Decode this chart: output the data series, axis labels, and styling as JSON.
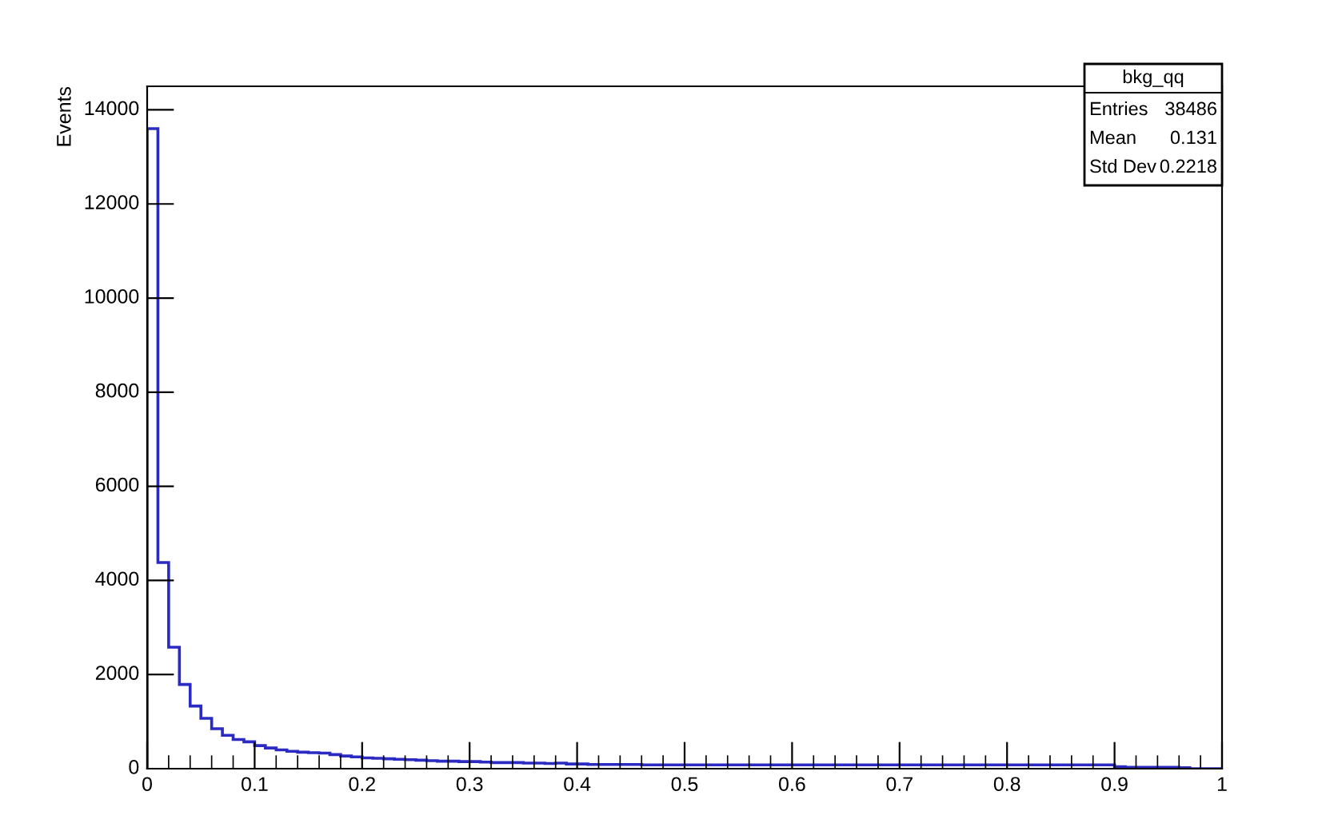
{
  "chart_data": {
    "type": "histogram",
    "ylabel": "Events",
    "color": "#2b2bc4",
    "annotations": [
      "bkg_qq",
      "Entries",
      "38486",
      "Mean",
      "0.131",
      "Std Dev",
      "0.2218"
    ],
    "bins": [
      0,
      0.01,
      0.02,
      0.03,
      0.04,
      0.05,
      0.06,
      0.07,
      0.08,
      0.09,
      0.1,
      0.11,
      0.12,
      0.13,
      0.14,
      0.15,
      0.16,
      0.17,
      0.18,
      0.19,
      0.2,
      0.21,
      0.22,
      0.23,
      0.24,
      0.25,
      0.26,
      0.27,
      0.28,
      0.29,
      0.3,
      0.31,
      0.32,
      0.33,
      0.34,
      0.35,
      0.36,
      0.37,
      0.38,
      0.39,
      0.4,
      0.41,
      0.42,
      0.43,
      0.44,
      0.45,
      0.46,
      0.47,
      0.48,
      0.49,
      0.5,
      0.51,
      0.52,
      0.53,
      0.54,
      0.55,
      0.56,
      0.57,
      0.58,
      0.59,
      0.6,
      0.61,
      0.62,
      0.63,
      0.64,
      0.65,
      0.66,
      0.67,
      0.68,
      0.69,
      0.7,
      0.71,
      0.72,
      0.73,
      0.74,
      0.75,
      0.76,
      0.77,
      0.78,
      0.79,
      0.8,
      0.81,
      0.82,
      0.83,
      0.84,
      0.85,
      0.86,
      0.87,
      0.88,
      0.89,
      0.9,
      0.91,
      0.92,
      0.93,
      0.94,
      0.95,
      0.96,
      0.97,
      0.98,
      0.99,
      1
    ],
    "values": [
      13600,
      4380,
      2580,
      1790,
      1330,
      1070,
      850,
      710,
      620,
      570,
      490,
      440,
      400,
      370,
      350,
      340,
      330,
      300,
      270,
      250,
      230,
      220,
      210,
      200,
      190,
      180,
      170,
      160,
      160,
      150,
      150,
      140,
      130,
      130,
      130,
      120,
      120,
      110,
      120,
      100,
      100,
      90,
      90,
      90,
      90,
      90,
      80,
      80,
      80,
      80,
      80,
      80,
      80,
      80,
      80,
      80,
      80,
      80,
      80,
      80,
      80,
      80,
      80,
      80,
      80,
      80,
      80,
      80,
      80,
      80,
      80,
      80,
      80,
      80,
      80,
      80,
      80,
      80,
      80,
      80,
      80,
      80,
      80,
      80,
      80,
      80,
      80,
      80,
      80,
      80,
      40,
      30,
      30,
      30,
      30,
      30,
      20,
      0,
      0,
      0
    ],
    "xlim": [
      0,
      1
    ],
    "xticks": [
      0,
      {
        "value": 0.1,
        "label": "0.1"
      },
      {
        "value": 0.2,
        "label": "0.2"
      },
      {
        "value": 0.3,
        "label": "0.3"
      },
      {
        "value": 0.4,
        "label": "0.4"
      },
      {
        "value": 0.5,
        "label": "0.5"
      },
      {
        "value": 0.6,
        "label": "0.6"
      },
      {
        "value": 0.7,
        "label": "0.7"
      },
      {
        "value": 0.8,
        "label": "0.8"
      },
      {
        "value": 0.9,
        "label": "0.9"
      },
      1
    ],
    "ylim": [
      0,
      14500
    ],
    "yticks": [
      0,
      2000,
      4000,
      6000,
      8000,
      10000,
      12000,
      14000
    ]
  }
}
